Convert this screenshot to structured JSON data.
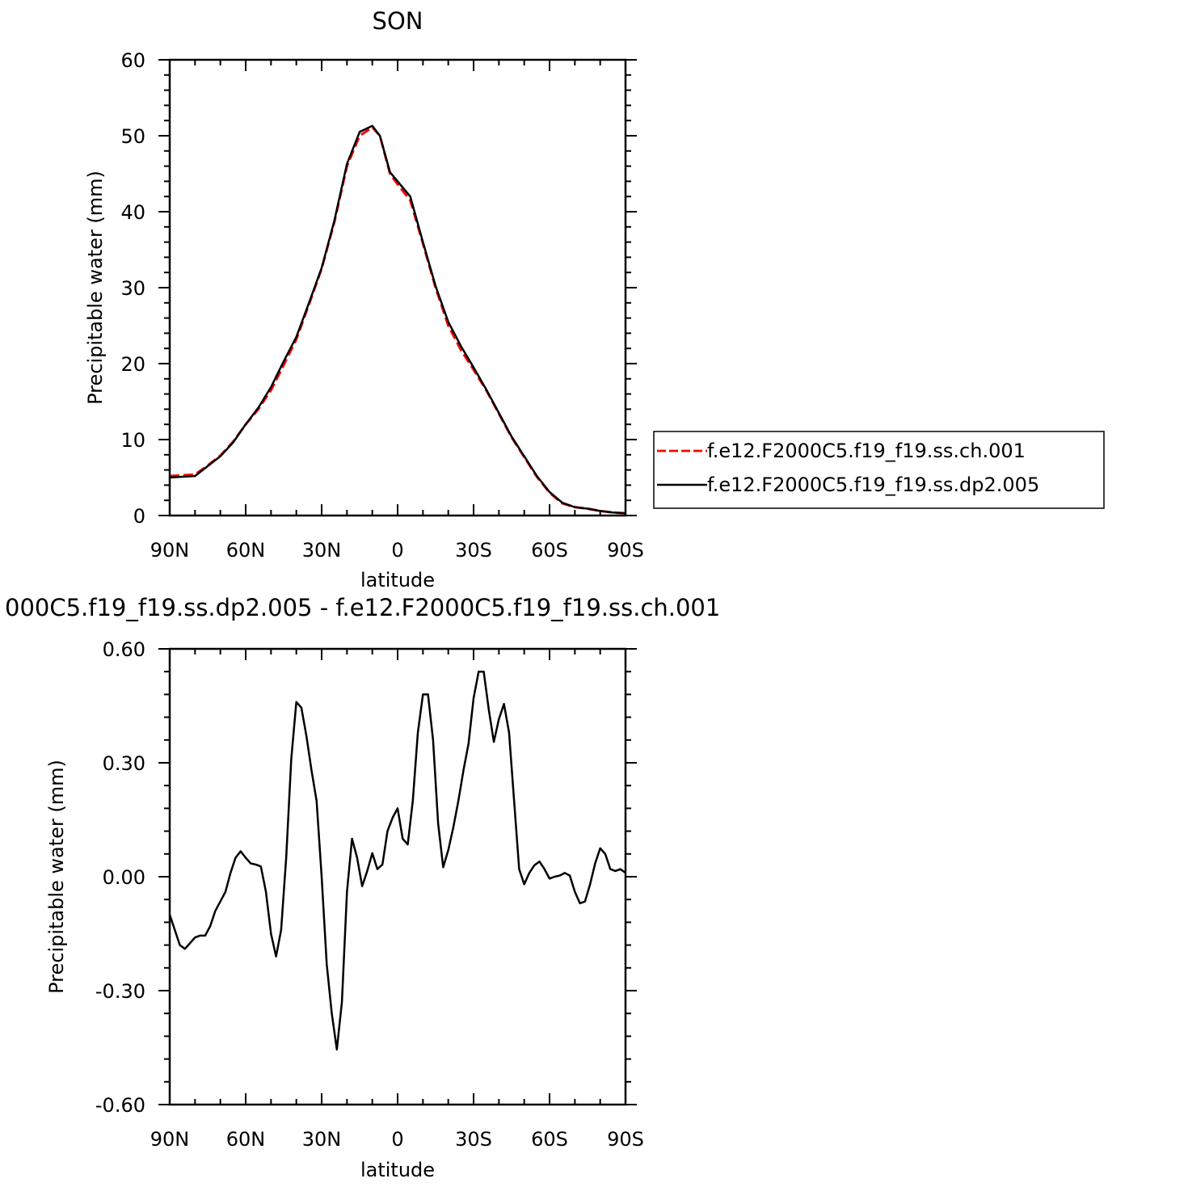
{
  "chart_data": [
    {
      "type": "line",
      "title": "SON",
      "xlabel": "latitude",
      "ylabel": "Precipitable water (mm)",
      "xlim": [
        -90,
        90
      ],
      "ylim": [
        0,
        60
      ],
      "x_ticks": [
        {
          "value": -90,
          "label": "90N"
        },
        {
          "value": -60,
          "label": "60N"
        },
        {
          "value": -30,
          "label": "30N"
        },
        {
          "value": 0,
          "label": "0"
        },
        {
          "value": 30,
          "label": "30S"
        },
        {
          "value": 60,
          "label": "60S"
        },
        {
          "value": 90,
          "label": "90S"
        }
      ],
      "y_ticks": [
        {
          "value": 0,
          "label": "0"
        },
        {
          "value": 10,
          "label": "10"
        },
        {
          "value": 20,
          "label": "20"
        },
        {
          "value": 30,
          "label": "30"
        },
        {
          "value": 40,
          "label": "40"
        },
        {
          "value": 50,
          "label": "50"
        },
        {
          "value": 60,
          "label": "60"
        }
      ],
      "legend_position": "right",
      "series": [
        {
          "name": "f.e12.F2000C5.f19_f19.ss.ch.001",
          "color": "#ff0000",
          "dash": true,
          "x": [
            -90,
            -85,
            -80,
            -75,
            -70,
            -65,
            -60,
            -55,
            -50,
            -45,
            -40,
            -35,
            -30,
            -25,
            -20,
            -15,
            -10,
            -7,
            -5,
            -3,
            0,
            5,
            10,
            15,
            20,
            25,
            30,
            35,
            40,
            45,
            50,
            55,
            60,
            65,
            70,
            75,
            80,
            85,
            90
          ],
          "values": [
            5.2,
            5.3,
            5.4,
            6.6,
            7.9,
            9.7,
            12.0,
            14.0,
            16.5,
            19.8,
            23.2,
            27.8,
            32.5,
            38.6,
            46.0,
            50.0,
            51.1,
            50.0,
            47.5,
            45.0,
            43.6,
            41.5,
            35.8,
            30.0,
            25.0,
            21.8,
            19.2,
            16.5,
            13.4,
            10.3,
            7.7,
            5.1,
            3.0,
            1.6,
            1.1,
            0.9,
            0.6,
            0.4,
            0.3
          ]
        },
        {
          "name": "f.e12.F2000C5.f19_f19.ss.dp2.005",
          "color": "#000000",
          "dash": false,
          "x": [
            -90,
            -85,
            -80,
            -75,
            -70,
            -65,
            -60,
            -55,
            -50,
            -45,
            -40,
            -35,
            -30,
            -25,
            -20,
            -15,
            -10,
            -7,
            -5,
            -3,
            0,
            5,
            10,
            15,
            20,
            25,
            30,
            35,
            40,
            45,
            50,
            55,
            60,
            65,
            70,
            75,
            80,
            85,
            90
          ],
          "values": [
            5.0,
            5.1,
            5.2,
            6.5,
            7.8,
            9.6,
            12.0,
            14.2,
            16.9,
            20.3,
            23.5,
            28.0,
            32.6,
            38.8,
            46.3,
            50.5,
            51.3,
            50.0,
            47.6,
            45.2,
            44.0,
            42.0,
            36.0,
            30.2,
            25.5,
            22.3,
            19.5,
            16.6,
            13.5,
            10.4,
            7.8,
            5.2,
            3.1,
            1.7,
            1.1,
            0.9,
            0.6,
            0.4,
            0.3
          ]
        }
      ]
    },
    {
      "type": "line",
      "title": "000C5.f19_f19.ss.dp2.005 - f.e12.F2000C5.f19_f19.ss.ch.001",
      "xlabel": "latitude",
      "ylabel": "Precipitable water (mm)",
      "xlim": [
        -90,
        90
      ],
      "ylim": [
        -0.6,
        0.6
      ],
      "x_ticks": [
        {
          "value": -90,
          "label": "90N"
        },
        {
          "value": -60,
          "label": "60N"
        },
        {
          "value": -30,
          "label": "30N"
        },
        {
          "value": 0,
          "label": "0"
        },
        {
          "value": 30,
          "label": "30S"
        },
        {
          "value": 60,
          "label": "60S"
        },
        {
          "value": 90,
          "label": "90S"
        }
      ],
      "y_ticks": [
        {
          "value": -0.6,
          "label": "-0.60"
        },
        {
          "value": -0.3,
          "label": "-0.30"
        },
        {
          "value": 0,
          "label": "0.00"
        },
        {
          "value": 0.3,
          "label": "0.30"
        },
        {
          "value": 0.6,
          "label": "0.60"
        }
      ],
      "series": [
        {
          "color": "#000000",
          "x": [
            -90,
            -88,
            -86,
            -84,
            -82,
            -80,
            -78,
            -76,
            -74,
            -72,
            -70,
            -68,
            -66,
            -64,
            -62,
            -60,
            -58,
            -56,
            -54,
            -52,
            -50,
            -48,
            -46,
            -44,
            -42,
            -40,
            -38,
            -36,
            -34,
            -32,
            -30,
            -28,
            -26,
            -24,
            -22,
            -20,
            -18,
            -16,
            -14,
            -12,
            -10,
            -8,
            -6,
            -4,
            -2,
            0,
            2,
            4,
            6,
            8,
            10,
            12,
            14,
            16,
            18,
            20,
            22,
            24,
            26,
            28,
            30,
            32,
            34,
            36,
            38,
            40,
            42,
            44,
            46,
            48,
            50,
            52,
            54,
            56,
            58,
            60,
            62,
            64,
            66,
            68,
            70,
            72,
            74,
            76,
            78,
            80,
            82,
            84,
            86,
            88,
            90
          ],
          "values": [
            -0.1,
            -0.14,
            -0.18,
            -0.19,
            -0.175,
            -0.16,
            -0.155,
            -0.155,
            -0.13,
            -0.09,
            -0.065,
            -0.04,
            0.01,
            0.05,
            0.067,
            0.05,
            0.035,
            0.032,
            0.027,
            -0.04,
            -0.15,
            -0.21,
            -0.14,
            0.05,
            0.31,
            0.46,
            0.445,
            0.37,
            0.28,
            0.2,
            0.0,
            -0.23,
            -0.36,
            -0.455,
            -0.33,
            -0.04,
            0.1,
            0.05,
            -0.025,
            0.015,
            0.062,
            0.02,
            0.032,
            0.12,
            0.155,
            0.18,
            0.1,
            0.085,
            0.2,
            0.38,
            0.48,
            0.48,
            0.36,
            0.14,
            0.025,
            0.07,
            0.13,
            0.2,
            0.28,
            0.35,
            0.47,
            0.54,
            0.54,
            0.44,
            0.355,
            0.415,
            0.455,
            0.38,
            0.2,
            0.02,
            -0.02,
            0.01,
            0.03,
            0.04,
            0.02,
            -0.005,
            0.0,
            0.003,
            0.01,
            0.003,
            -0.04,
            -0.07,
            -0.065,
            -0.02,
            0.035,
            0.075,
            0.06,
            0.02,
            0.015,
            0.02,
            0.01
          ]
        }
      ]
    }
  ]
}
